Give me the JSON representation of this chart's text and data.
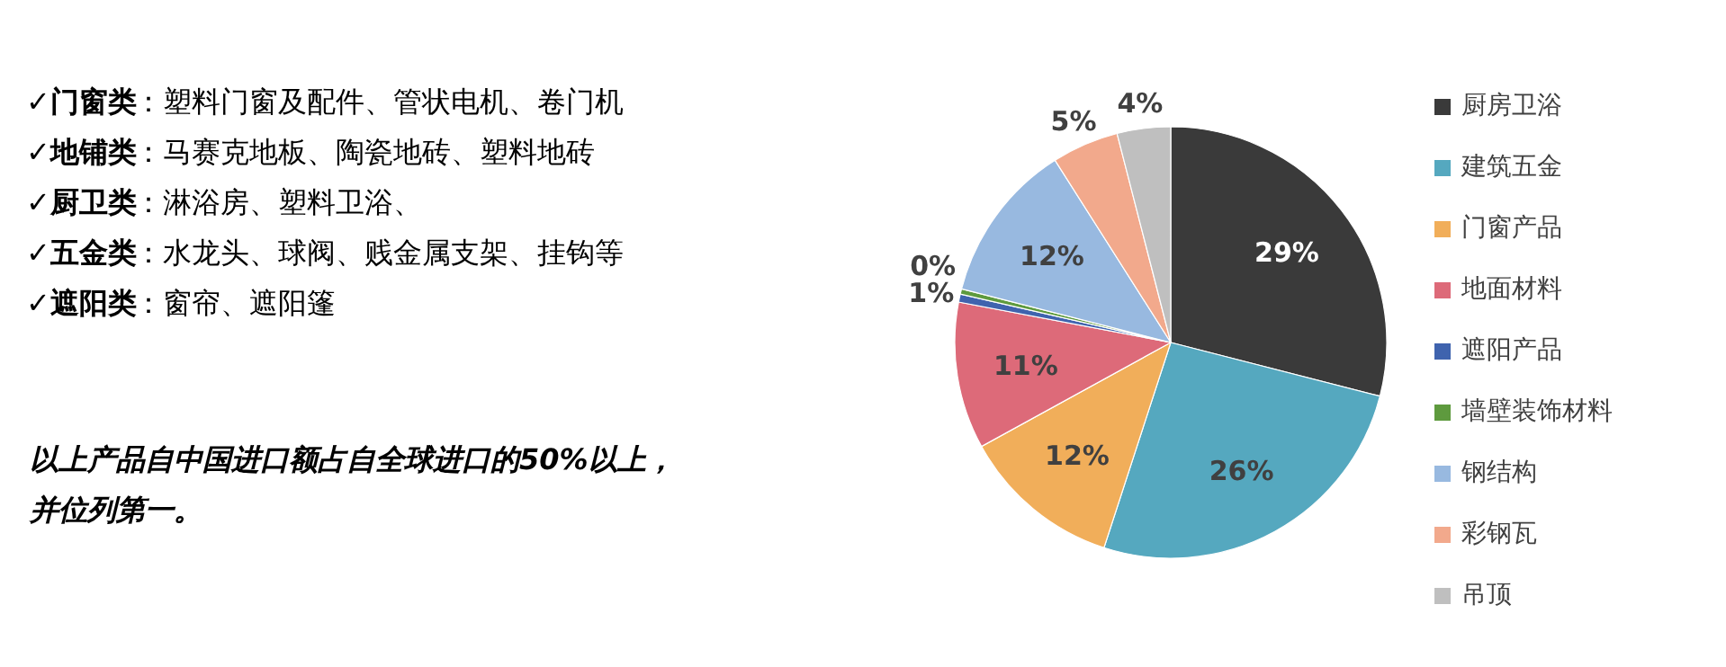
{
  "chart_data": [
    {
      "type": "other",
      "annotations": [
        "✓门窗类：塑料门窗及配件、管状电机、卷门机",
        "✓地铺类：马赛克地板、陶瓷地砖、塑料地砖",
        "✓厨卫类：淋浴房、塑料卫浴、",
        "✓五金类：水龙头、球阀、贱金属支架、挂钩等",
        "✓遮阳类：窗帘、遮阳篷",
        "以上产品自中国进口额占自全球进口的50%以上，并位列第一。"
      ]
    },
    {
      "type": "pie",
      "categories": [
        "厨房卫浴",
        "建筑五金",
        "门窗产品",
        "地面材料",
        "遮阳产品",
        "墙壁装饰材料",
        "钢结构",
        "彩钢瓦",
        "吊顶"
      ],
      "values": [
        29,
        26,
        12,
        11,
        0.6,
        0.4,
        12,
        5,
        4
      ],
      "value_labels": [
        "29%",
        "26%",
        "12%",
        "11%",
        "1%",
        "0%",
        "12%",
        "5%",
        "4%"
      ],
      "colors": [
        "#3a3a3a",
        "#55a8bf",
        "#f1ae5a",
        "#dd6a79",
        "#3f63ae",
        "#5e9a3e",
        "#98b9e0",
        "#f2a98c",
        "#bfbfbf"
      ],
      "legend": "right"
    }
  ]
}
